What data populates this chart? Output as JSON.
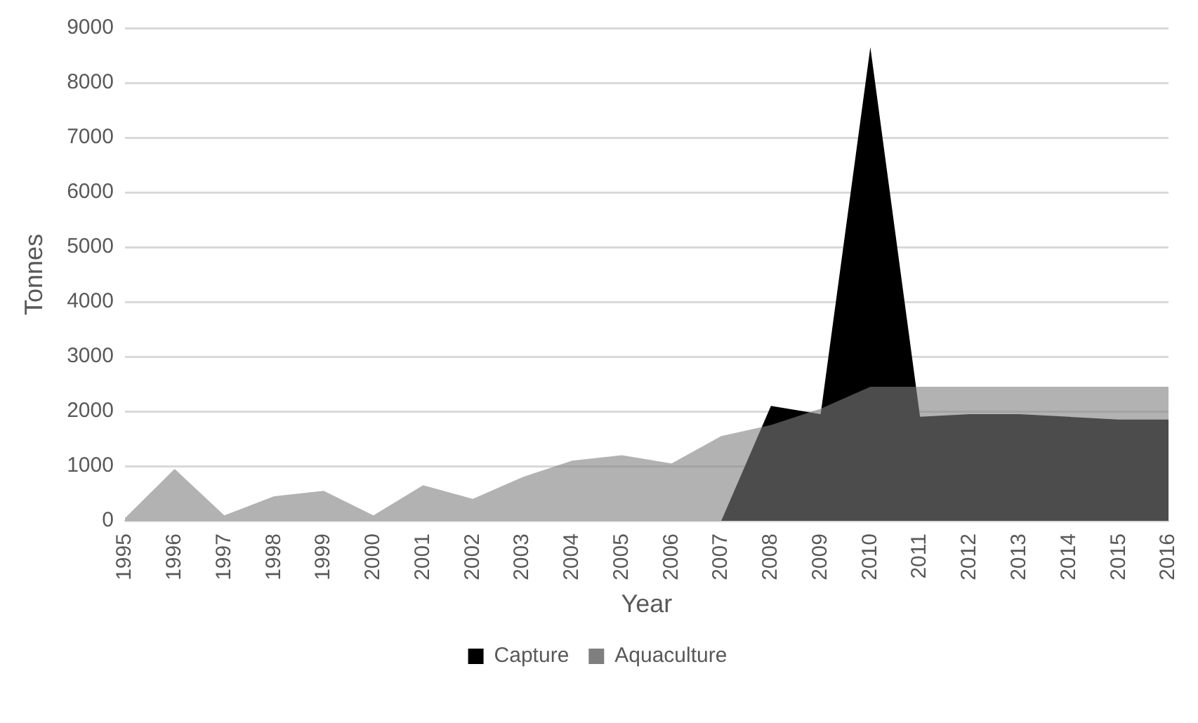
{
  "chart_data": {
    "type": "area",
    "xlabel": "Year",
    "ylabel": "Tonnes",
    "categories": [
      "1995",
      "1996",
      "1997",
      "1998",
      "1999",
      "2000",
      "2001",
      "2002",
      "2003",
      "2004",
      "2005",
      "2006",
      "2007",
      "2008",
      "2009",
      "2010",
      "2011",
      "2012",
      "2013",
      "2014",
      "2015",
      "2016"
    ],
    "series": [
      {
        "name": "Capture",
        "color": "#000000",
        "values": [
          null,
          null,
          null,
          null,
          null,
          null,
          null,
          null,
          null,
          null,
          null,
          null,
          0,
          2100,
          1950,
          8650,
          1900,
          1950,
          1950,
          1900,
          1850,
          1850
        ]
      },
      {
        "name": "Aquaculture",
        "color": "#7f7f7f",
        "values": [
          50,
          950,
          100,
          450,
          550,
          100,
          650,
          400,
          800,
          1100,
          1200,
          1050,
          1550,
          1750,
          2050,
          2450,
          2450,
          2450,
          2450,
          2450,
          2450,
          2450
        ]
      }
    ],
    "ylim": [
      0,
      9000
    ],
    "yticks": [
      0,
      1000,
      2000,
      3000,
      4000,
      5000,
      6000,
      7000,
      8000,
      9000
    ],
    "grid": "y",
    "legend": "bottom"
  }
}
